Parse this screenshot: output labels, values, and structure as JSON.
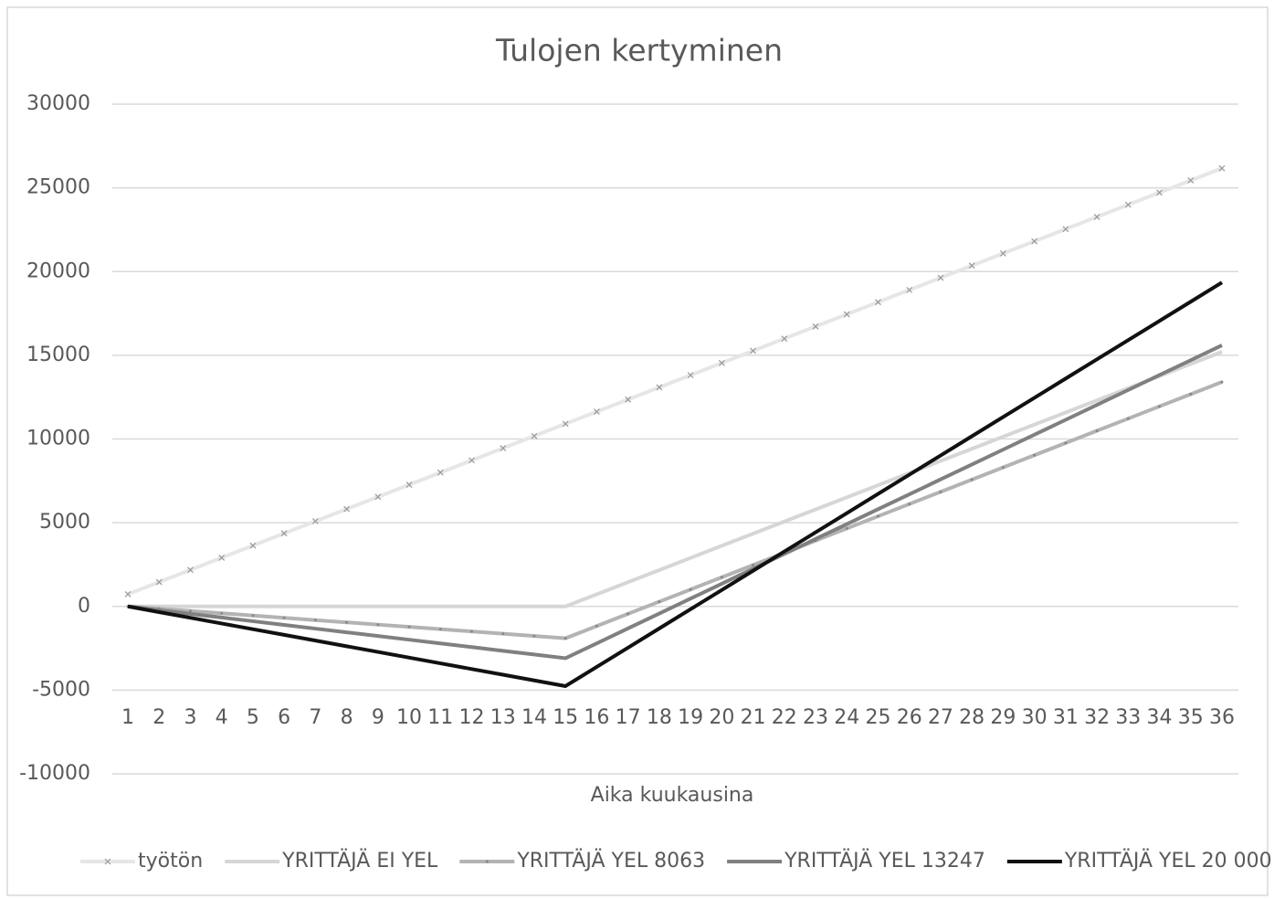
{
  "chart_data": {
    "type": "line",
    "title": "Tulojen kertyminen",
    "x_label": "Aika kuukausina",
    "categories": [
      1,
      2,
      3,
      4,
      5,
      6,
      7,
      8,
      9,
      10,
      11,
      12,
      13,
      14,
      15,
      16,
      17,
      18,
      19,
      20,
      21,
      22,
      23,
      24,
      25,
      26,
      27,
      28,
      29,
      30,
      31,
      32,
      33,
      34,
      35,
      36
    ],
    "ylim": [
      -10000,
      30000
    ],
    "yticks": [
      -10000,
      -5000,
      0,
      5000,
      10000,
      15000,
      20000,
      25000,
      30000
    ],
    "grid": true,
    "legend": "bottom",
    "series": [
      {
        "name": "työtön",
        "color": "#e6e6e6",
        "marker": "x",
        "values": [
          727,
          1454,
          2181,
          2908,
          3635,
          4362,
          5089,
          5816,
          6543,
          7270,
          7997,
          8724,
          9451,
          10178,
          10905,
          11632,
          12359,
          13086,
          13813,
          14540,
          15267,
          15994,
          16721,
          17448,
          18175,
          18902,
          19629,
          20356,
          21083,
          21810,
          22537,
          23264,
          23991,
          24718,
          25445,
          26172
        ]
      },
      {
        "name": "YRITTÄJÄ EI YEL",
        "color": "#d6d6d6",
        "values": [
          0,
          0,
          0,
          0,
          0,
          0,
          0,
          0,
          0,
          0,
          0,
          0,
          0,
          0,
          0,
          724,
          1448,
          2172,
          2896,
          3620,
          4344,
          5068,
          5792,
          6516,
          7240,
          7964,
          8688,
          9412,
          10136,
          10860,
          11584,
          12308,
          13032,
          13756,
          14480,
          15204
        ]
      },
      {
        "name": "YRITTÄJÄ YEL 8063",
        "color": "#b3b3b3",
        "marker": "dot",
        "values": [
          0,
          -136,
          -272,
          -408,
          -544,
          -680,
          -816,
          -952,
          -1088,
          -1224,
          -1360,
          -1496,
          -1632,
          -1768,
          -1904,
          -1175,
          -446,
          283,
          1012,
          1741,
          2470,
          3199,
          3928,
          4657,
          5386,
          6115,
          6844,
          7573,
          8302,
          9031,
          9760,
          10489,
          11218,
          11947,
          12676,
          13405
        ]
      },
      {
        "name": "YRITTÄJÄ YEL 13247",
        "color": "#808080",
        "values": [
          0,
          -221,
          -442,
          -663,
          -884,
          -1105,
          -1326,
          -1547,
          -1768,
          -1989,
          -2210,
          -2431,
          -2652,
          -2873,
          -3094,
          -2204,
          -1314,
          -424,
          466,
          1356,
          2246,
          3136,
          4026,
          4916,
          5806,
          6696,
          7586,
          8476,
          9366,
          10256,
          11146,
          12036,
          12926,
          13816,
          14706,
          15596
        ]
      },
      {
        "name": "YRITTÄJÄ YEL 20 000",
        "color": "#111111",
        "values": [
          0,
          -340,
          -680,
          -1020,
          -1360,
          -1700,
          -2040,
          -2380,
          -2720,
          -3060,
          -3400,
          -3740,
          -4080,
          -4420,
          -4760,
          -3612,
          -2464,
          -1316,
          -168,
          980,
          2128,
          3276,
          4424,
          5572,
          6720,
          7868,
          9016,
          10164,
          11312,
          12460,
          13608,
          14756,
          15904,
          17052,
          18200,
          19348
        ]
      }
    ]
  }
}
